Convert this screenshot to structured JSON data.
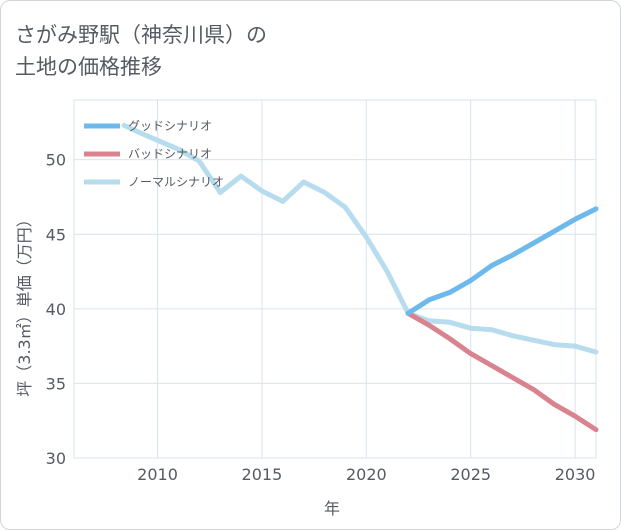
{
  "title": {
    "line1": "さがみ野駅（神奈川県）の",
    "line2": "土地の価格推移"
  },
  "colors": {
    "good": "#6db9ec",
    "bad": "#d9838f",
    "normal": "#b7dcee",
    "grid": "#d6e4ec",
    "text": "#555b63"
  },
  "chart_data": {
    "type": "line",
    "title": "さがみ野駅（神奈川県）の土地の価格推移",
    "xlabel": "年",
    "ylabel": "坪（3.3㎡）単価（万円）",
    "xlim": [
      2006,
      2031
    ],
    "ylim": [
      30,
      54
    ],
    "xticks": [
      2010,
      2015,
      2020,
      2025,
      2030
    ],
    "yticks": [
      30,
      35,
      40,
      45,
      50
    ],
    "legend_position": "top-left",
    "series": [
      {
        "name": "グッドシナリオ",
        "key": "good",
        "x": [
          2022,
          2023,
          2024,
          2025,
          2026,
          2027,
          2028,
          2029,
          2030,
          2031
        ],
        "y": [
          39.7,
          40.6,
          41.1,
          41.9,
          42.9,
          43.6,
          44.4,
          45.2,
          46.0,
          46.7
        ]
      },
      {
        "name": "バッドシナリオ",
        "key": "bad",
        "x": [
          2022,
          2023,
          2024,
          2025,
          2026,
          2027,
          2028,
          2029,
          2030,
          2031
        ],
        "y": [
          39.7,
          38.9,
          38.0,
          37.0,
          36.2,
          35.4,
          34.6,
          33.6,
          32.8,
          31.9
        ]
      },
      {
        "name": "ノーマルシナリオ",
        "key": "normal",
        "x": [
          2008.4,
          2009,
          2010,
          2011,
          2012,
          2013,
          2014,
          2015,
          2016,
          2017,
          2018,
          2019,
          2020,
          2021,
          2022,
          2023,
          2024,
          2025,
          2026,
          2027,
          2028,
          2029,
          2030,
          2031
        ],
        "y": [
          52.3,
          51.9,
          51.3,
          50.7,
          49.9,
          47.8,
          48.9,
          47.9,
          47.2,
          48.5,
          47.8,
          46.8,
          44.8,
          42.5,
          39.7,
          39.2,
          39.1,
          38.7,
          38.6,
          38.2,
          37.9,
          37.6,
          37.5,
          37.1
        ]
      }
    ]
  }
}
